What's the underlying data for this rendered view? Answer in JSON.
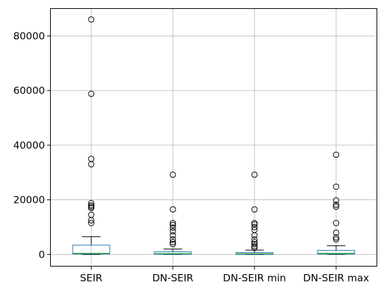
{
  "chart_data": {
    "type": "boxplot",
    "title": "",
    "xlabel": "",
    "ylabel": "",
    "categories": [
      "SEIR",
      "DN-SEIR",
      "DN-SEIR min",
      "DN-SEIR max"
    ],
    "ylim": [
      -4300,
      90000
    ],
    "yticks": [
      0,
      20000,
      40000,
      60000,
      80000
    ],
    "grid": true,
    "colors": {
      "box": "#1f77b4",
      "median": "#2ca02c",
      "whisker": "#000000",
      "grid": "#b0b0b0"
    },
    "boxes": [
      {
        "name": "SEIR",
        "whislo": 0,
        "q1": 150,
        "median": 400,
        "q3": 3400,
        "whishi": 6500,
        "fliers": [
          11500,
          12500,
          14500,
          17000,
          17500,
          18000,
          18800,
          33000,
          35000,
          58800,
          86000
        ]
      },
      {
        "name": "DN-SEIR",
        "whislo": 0,
        "q1": 50,
        "median": 300,
        "q3": 1000,
        "whishi": 2000,
        "fliers": [
          3800,
          4500,
          5500,
          7000,
          8500,
          9800,
          10800,
          11500,
          16500,
          29200
        ]
      },
      {
        "name": "DN-SEIR min",
        "whislo": 0,
        "q1": 50,
        "median": 250,
        "q3": 700,
        "whishi": 1600,
        "fliers": [
          2400,
          3000,
          3800,
          4500,
          5500,
          7000,
          9000,
          10000,
          11000,
          11500,
          16500,
          29200
        ]
      },
      {
        "name": "DN-SEIR max",
        "whislo": 0,
        "q1": 100,
        "median": 400,
        "q3": 1500,
        "whishi": 3200,
        "fliers": [
          5500,
          6200,
          8000,
          11500,
          17500,
          18200,
          19800,
          24800,
          36500
        ]
      }
    ]
  }
}
